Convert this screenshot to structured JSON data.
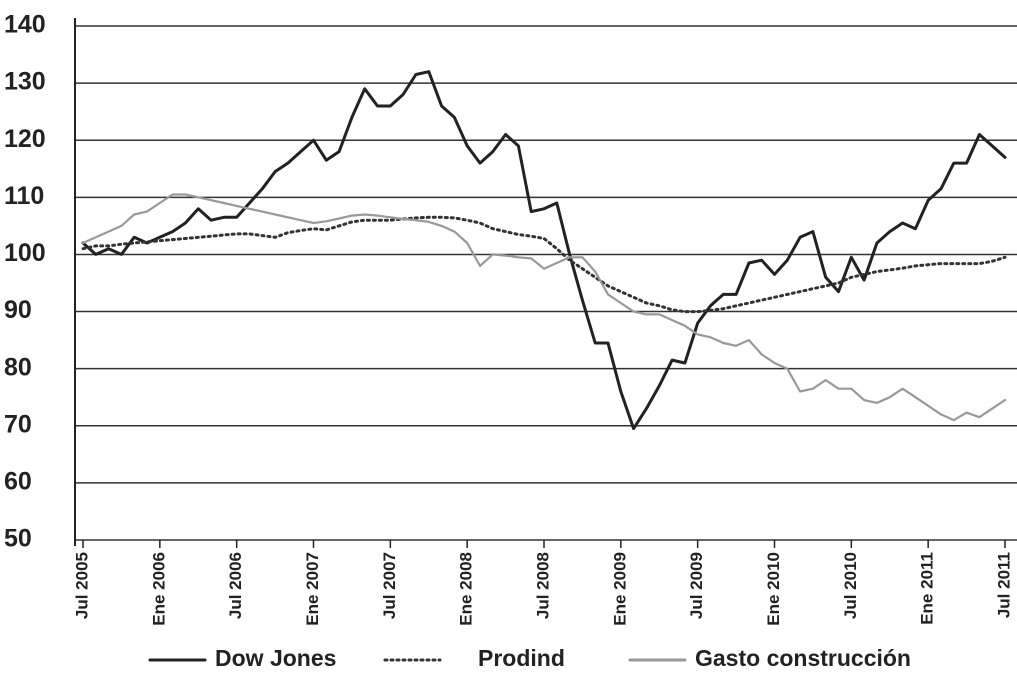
{
  "chart_data": {
    "type": "line",
    "categories": [
      "Jul 2005",
      null,
      null,
      null,
      null,
      null,
      "Ene 2006",
      null,
      null,
      null,
      null,
      null,
      "Jul 2006",
      null,
      null,
      null,
      null,
      null,
      "Ene 2007",
      null,
      null,
      null,
      null,
      null,
      "Jul 2007",
      null,
      null,
      null,
      null,
      null,
      "Ene 2008",
      null,
      null,
      null,
      null,
      null,
      "Jul 2008",
      null,
      null,
      null,
      null,
      null,
      "Ene 2009",
      null,
      null,
      null,
      null,
      null,
      "Jul 2009",
      null,
      null,
      null,
      null,
      null,
      "Ene 2010",
      null,
      null,
      null,
      null,
      null,
      "Jul 2010",
      null,
      null,
      null,
      null,
      null,
      "Ene 2011",
      null,
      null,
      null,
      null,
      null,
      "Jul 2011"
    ],
    "series": [
      {
        "name": "Dow Jones",
        "color": "#222222",
        "dash": "solid",
        "values": [
          102,
          100,
          101,
          100,
          103,
          102,
          103,
          104,
          105.5,
          108,
          106,
          106.5,
          106.5,
          109,
          111.5,
          114.5,
          116,
          118,
          120,
          116.5,
          118,
          124,
          129,
          126,
          126,
          128,
          131.5,
          132,
          126,
          124,
          119,
          116,
          118,
          121,
          119,
          107.5,
          108,
          109,
          100,
          92,
          84.5,
          84.5,
          76,
          69.5,
          73,
          77,
          81.5,
          81,
          88,
          91,
          93,
          93,
          98.5,
          99,
          96.5,
          99,
          103,
          104,
          96,
          93.5,
          99.5,
          95.5,
          102,
          104,
          105.5,
          104.5,
          109.5,
          111.5,
          116,
          116,
          121,
          119,
          117
        ]
      },
      {
        "name": "Prodind",
        "color": "#333333",
        "dash": "dotted",
        "values": [
          101,
          101.5,
          101.5,
          101.8,
          102,
          102.2,
          102.4,
          102.6,
          102.8,
          103,
          103.2,
          103.4,
          103.6,
          103.6,
          103.3,
          103,
          103.8,
          104.2,
          104.5,
          104.3,
          105,
          105.7,
          106,
          106,
          106,
          106.2,
          106.4,
          106.5,
          106.5,
          106.4,
          106,
          105.5,
          104.5,
          104,
          103.5,
          103.2,
          102.8,
          101,
          99,
          97.5,
          96,
          94.5,
          93.5,
          92.5,
          91.5,
          91,
          90.3,
          90,
          90,
          90.2,
          90.5,
          91,
          91.5,
          92,
          92.5,
          93,
          93.5,
          94,
          94.5,
          95,
          96,
          96.5,
          97,
          97.3,
          97.6,
          98,
          98.2,
          98.4,
          98.4,
          98.4,
          98.4,
          98.8,
          99.5
        ]
      },
      {
        "name": "Gasto construcción",
        "color": "#999999",
        "dash": "solid",
        "values": [
          102,
          103,
          104,
          105,
          107,
          107.5,
          109,
          110.5,
          110.5,
          110,
          109.5,
          109,
          108.5,
          108,
          107.5,
          107,
          106.5,
          106,
          105.5,
          105.8,
          106.3,
          106.8,
          107,
          106.8,
          106.5,
          106.2,
          106,
          105.7,
          105,
          104,
          102,
          98,
          100,
          99.8,
          99.5,
          99.3,
          97.5,
          98.5,
          99.5,
          99.5,
          97,
          93,
          91.5,
          90,
          89.5,
          89.5,
          88.5,
          87.5,
          86,
          85.5,
          84.5,
          84,
          85,
          82.5,
          81,
          80,
          76,
          76.5,
          78,
          76.5,
          76.5,
          74.5,
          74,
          75,
          76.5,
          75,
          73.5,
          72,
          71,
          72.3,
          71.5,
          73,
          74.5
        ]
      }
    ],
    "ylim": [
      50,
      140
    ],
    "yticks": [
      50,
      60,
      70,
      80,
      90,
      100,
      110,
      120,
      130,
      140
    ],
    "grid": true,
    "legend": "bottom"
  }
}
